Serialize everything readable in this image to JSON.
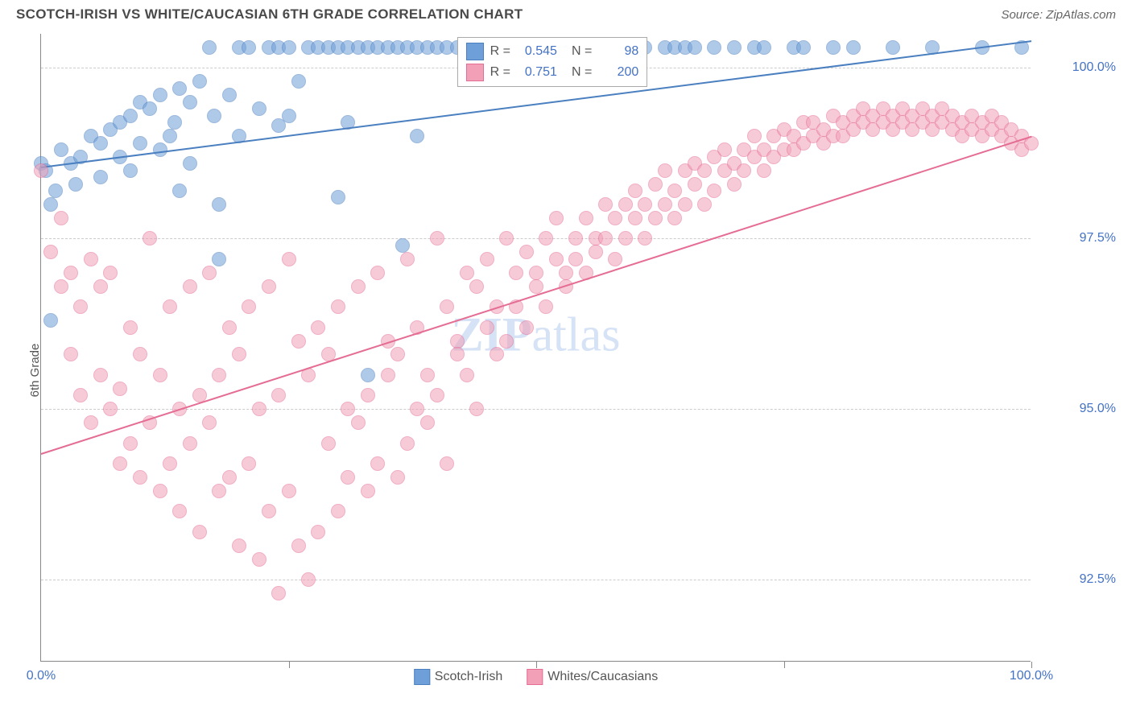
{
  "header": {
    "title": "SCOTCH-IRISH VS WHITE/CAUCASIAN 6TH GRADE CORRELATION CHART",
    "source": "Source: ZipAtlas.com"
  },
  "ylabel": "6th Grade",
  "watermark_bold": "ZIP",
  "watermark_rest": "atlas",
  "chart": {
    "type": "scatter",
    "xlim": [
      0,
      100
    ],
    "ylim": [
      91.3,
      100.5
    ],
    "yticks": [
      92.5,
      95.0,
      97.5,
      100.0
    ],
    "ytick_labels": [
      "92.5%",
      "95.0%",
      "97.5%",
      "100.0%"
    ],
    "xticks_minor": [
      0,
      25,
      50,
      75,
      100
    ],
    "xtick_left": "0.0%",
    "xtick_right": "100.0%",
    "grid_color": "#cccccc",
    "background_color": "#ffffff",
    "tick_color": "#4472c4",
    "point_radius": 9,
    "point_opacity": 0.55,
    "series": [
      {
        "name": "Scotch-Irish",
        "color": "#6f9fd8",
        "stroke": "#4a7fc0",
        "R": "0.545",
        "N": "98",
        "trend": {
          "x0": 0,
          "y0": 98.55,
          "x1": 100,
          "y1": 100.4
        },
        "points": [
          [
            0,
            98.6
          ],
          [
            0.5,
            98.5
          ],
          [
            1,
            98.0
          ],
          [
            1,
            96.3
          ],
          [
            1.5,
            98.2
          ],
          [
            2,
            98.8
          ],
          [
            3,
            98.6
          ],
          [
            3.5,
            98.3
          ],
          [
            4,
            98.7
          ],
          [
            5,
            99.0
          ],
          [
            6,
            98.9
          ],
          [
            6,
            98.4
          ],
          [
            7,
            99.1
          ],
          [
            8,
            99.2
          ],
          [
            8,
            98.7
          ],
          [
            9,
            99.3
          ],
          [
            9,
            98.5
          ],
          [
            10,
            98.9
          ],
          [
            10,
            99.5
          ],
          [
            11,
            99.4
          ],
          [
            12,
            98.8
          ],
          [
            12,
            99.6
          ],
          [
            13,
            99.0
          ],
          [
            13.5,
            99.2
          ],
          [
            14,
            99.7
          ],
          [
            14,
            98.2
          ],
          [
            15,
            99.5
          ],
          [
            15,
            98.6
          ],
          [
            16,
            99.8
          ],
          [
            17,
            100.3
          ],
          [
            17.5,
            99.3
          ],
          [
            18,
            98.0
          ],
          [
            18,
            97.2
          ],
          [
            19,
            99.6
          ],
          [
            20,
            100.3
          ],
          [
            20,
            99.0
          ],
          [
            21,
            100.3
          ],
          [
            22,
            99.4
          ],
          [
            23,
            100.3
          ],
          [
            24,
            100.3
          ],
          [
            24,
            99.15
          ],
          [
            25,
            100.3
          ],
          [
            25,
            99.3
          ],
          [
            26,
            99.8
          ],
          [
            27,
            100.3
          ],
          [
            28,
            100.3
          ],
          [
            29,
            100.3
          ],
          [
            30,
            100.3
          ],
          [
            30,
            98.1
          ],
          [
            31,
            100.3
          ],
          [
            31,
            99.2
          ],
          [
            32,
            100.3
          ],
          [
            33,
            100.3
          ],
          [
            33,
            95.5
          ],
          [
            34,
            100.3
          ],
          [
            35,
            100.3
          ],
          [
            36,
            100.3
          ],
          [
            36.5,
            97.4
          ],
          [
            37,
            100.3
          ],
          [
            38,
            100.3
          ],
          [
            38,
            99.0
          ],
          [
            39,
            100.3
          ],
          [
            40,
            100.3
          ],
          [
            41,
            100.3
          ],
          [
            42,
            100.3
          ],
          [
            43,
            100.3
          ],
          [
            44,
            100.3
          ],
          [
            45,
            100.3
          ],
          [
            46,
            100.3
          ],
          [
            47,
            100.3
          ],
          [
            48,
            100.3
          ],
          [
            49,
            100.3
          ],
          [
            50,
            100.3
          ],
          [
            52,
            100.3
          ],
          [
            54,
            100.3
          ],
          [
            56,
            100.3
          ],
          [
            58,
            100.3
          ],
          [
            60,
            100.3
          ],
          [
            61,
            100.3
          ],
          [
            63,
            100.3
          ],
          [
            64,
            100.3
          ],
          [
            65,
            100.3
          ],
          [
            66,
            100.3
          ],
          [
            68,
            100.3
          ],
          [
            70,
            100.3
          ],
          [
            72,
            100.3
          ],
          [
            73,
            100.3
          ],
          [
            76,
            100.3
          ],
          [
            77,
            100.3
          ],
          [
            80,
            100.3
          ],
          [
            82,
            100.3
          ],
          [
            86,
            100.3
          ],
          [
            90,
            100.3
          ],
          [
            95,
            100.3
          ],
          [
            99,
            100.3
          ]
        ]
      },
      {
        "name": "Whites/Caucasians",
        "color": "#f2a0b8",
        "stroke": "#e56d94",
        "R": "0.751",
        "N": "200",
        "trend": {
          "x0": 0,
          "y0": 94.35,
          "x1": 100,
          "y1": 99.0
        },
        "points": [
          [
            0,
            98.5
          ],
          [
            1,
            97.3
          ],
          [
            2,
            97.8
          ],
          [
            2,
            96.8
          ],
          [
            3,
            97.0
          ],
          [
            3,
            95.8
          ],
          [
            4,
            96.5
          ],
          [
            4,
            95.2
          ],
          [
            5,
            97.2
          ],
          [
            5,
            94.8
          ],
          [
            6,
            96.8
          ],
          [
            6,
            95.5
          ],
          [
            7,
            95.0
          ],
          [
            7,
            97.0
          ],
          [
            8,
            95.3
          ],
          [
            8,
            94.2
          ],
          [
            9,
            96.2
          ],
          [
            9,
            94.5
          ],
          [
            10,
            95.8
          ],
          [
            10,
            94.0
          ],
          [
            11,
            97.5
          ],
          [
            11,
            94.8
          ],
          [
            12,
            95.5
          ],
          [
            12,
            93.8
          ],
          [
            13,
            96.5
          ],
          [
            13,
            94.2
          ],
          [
            14,
            95.0
          ],
          [
            14,
            93.5
          ],
          [
            15,
            96.8
          ],
          [
            15,
            94.5
          ],
          [
            16,
            95.2
          ],
          [
            16,
            93.2
          ],
          [
            17,
            97.0
          ],
          [
            17,
            94.8
          ],
          [
            18,
            95.5
          ],
          [
            18,
            93.8
          ],
          [
            19,
            96.2
          ],
          [
            19,
            94.0
          ],
          [
            20,
            95.8
          ],
          [
            20,
            93.0
          ],
          [
            21,
            96.5
          ],
          [
            21,
            94.2
          ],
          [
            22,
            95.0
          ],
          [
            22,
            92.8
          ],
          [
            23,
            96.8
          ],
          [
            23,
            93.5
          ],
          [
            24,
            95.2
          ],
          [
            24,
            92.3
          ],
          [
            25,
            97.2
          ],
          [
            25,
            93.8
          ],
          [
            26,
            96.0
          ],
          [
            26,
            93.0
          ],
          [
            27,
            95.5
          ],
          [
            27,
            92.5
          ],
          [
            28,
            96.2
          ],
          [
            28,
            93.2
          ],
          [
            29,
            95.8
          ],
          [
            29,
            94.5
          ],
          [
            30,
            96.5
          ],
          [
            30,
            93.5
          ],
          [
            31,
            95.0
          ],
          [
            31,
            94.0
          ],
          [
            32,
            96.8
          ],
          [
            32,
            94.8
          ],
          [
            33,
            95.2
          ],
          [
            33,
            93.8
          ],
          [
            34,
            97.0
          ],
          [
            34,
            94.2
          ],
          [
            35,
            96.0
          ],
          [
            35,
            95.5
          ],
          [
            36,
            95.8
          ],
          [
            36,
            94.0
          ],
          [
            37,
            97.2
          ],
          [
            37,
            94.5
          ],
          [
            38,
            96.2
          ],
          [
            38,
            95.0
          ],
          [
            39,
            95.5
          ],
          [
            39,
            94.8
          ],
          [
            40,
            97.5
          ],
          [
            40,
            95.2
          ],
          [
            41,
            96.5
          ],
          [
            41,
            94.2
          ],
          [
            42,
            96.0
          ],
          [
            42,
            95.8
          ],
          [
            43,
            97.0
          ],
          [
            43,
            95.5
          ],
          [
            44,
            96.8
          ],
          [
            44,
            95.0
          ],
          [
            45,
            97.2
          ],
          [
            45,
            96.2
          ],
          [
            46,
            96.5
          ],
          [
            46,
            95.8
          ],
          [
            47,
            97.5
          ],
          [
            47,
            96.0
          ],
          [
            48,
            97.0
          ],
          [
            48,
            96.5
          ],
          [
            49,
            97.3
          ],
          [
            49,
            96.2
          ],
          [
            50,
            97.0
          ],
          [
            50,
            96.8
          ],
          [
            51,
            97.5
          ],
          [
            51,
            96.5
          ],
          [
            52,
            97.2
          ],
          [
            52,
            97.8
          ],
          [
            53,
            97.0
          ],
          [
            53,
            96.8
          ],
          [
            54,
            97.5
          ],
          [
            54,
            97.2
          ],
          [
            55,
            97.8
          ],
          [
            55,
            97.0
          ],
          [
            56,
            97.5
          ],
          [
            56,
            97.3
          ],
          [
            57,
            98.0
          ],
          [
            57,
            97.5
          ],
          [
            58,
            97.8
          ],
          [
            58,
            97.2
          ],
          [
            59,
            98.0
          ],
          [
            59,
            97.5
          ],
          [
            60,
            97.8
          ],
          [
            60,
            98.2
          ],
          [
            61,
            98.0
          ],
          [
            61,
            97.5
          ],
          [
            62,
            98.3
          ],
          [
            62,
            97.8
          ],
          [
            63,
            98.0
          ],
          [
            63,
            98.5
          ],
          [
            64,
            98.2
          ],
          [
            64,
            97.8
          ],
          [
            65,
            98.5
          ],
          [
            65,
            98.0
          ],
          [
            66,
            98.3
          ],
          [
            66,
            98.6
          ],
          [
            67,
            98.5
          ],
          [
            67,
            98.0
          ],
          [
            68,
            98.7
          ],
          [
            68,
            98.2
          ],
          [
            69,
            98.5
          ],
          [
            69,
            98.8
          ],
          [
            70,
            98.6
          ],
          [
            70,
            98.3
          ],
          [
            71,
            98.8
          ],
          [
            71,
            98.5
          ],
          [
            72,
            98.7
          ],
          [
            72,
            99.0
          ],
          [
            73,
            98.8
          ],
          [
            73,
            98.5
          ],
          [
            74,
            99.0
          ],
          [
            74,
            98.7
          ],
          [
            75,
            98.8
          ],
          [
            75,
            99.1
          ],
          [
            76,
            99.0
          ],
          [
            76,
            98.8
          ],
          [
            77,
            99.2
          ],
          [
            77,
            98.9
          ],
          [
            78,
            99.0
          ],
          [
            78,
            99.2
          ],
          [
            79,
            99.1
          ],
          [
            79,
            98.9
          ],
          [
            80,
            99.0
          ],
          [
            80,
            99.3
          ],
          [
            81,
            99.2
          ],
          [
            81,
            99.0
          ],
          [
            82,
            99.3
          ],
          [
            82,
            99.1
          ],
          [
            83,
            99.2
          ],
          [
            83,
            99.4
          ],
          [
            84,
            99.3
          ],
          [
            84,
            99.1
          ],
          [
            85,
            99.4
          ],
          [
            85,
            99.2
          ],
          [
            86,
            99.3
          ],
          [
            86,
            99.1
          ],
          [
            87,
            99.2
          ],
          [
            87,
            99.4
          ],
          [
            88,
            99.3
          ],
          [
            88,
            99.1
          ],
          [
            89,
            99.2
          ],
          [
            89,
            99.4
          ],
          [
            90,
            99.3
          ],
          [
            90,
            99.1
          ],
          [
            91,
            99.2
          ],
          [
            91,
            99.4
          ],
          [
            92,
            99.3
          ],
          [
            92,
            99.1
          ],
          [
            93,
            99.2
          ],
          [
            93,
            99.0
          ],
          [
            94,
            99.1
          ],
          [
            94,
            99.3
          ],
          [
            95,
            99.2
          ],
          [
            95,
            99.0
          ],
          [
            96,
            99.1
          ],
          [
            96,
            99.3
          ],
          [
            97,
            99.2
          ],
          [
            97,
            99.0
          ],
          [
            98,
            99.1
          ],
          [
            98,
            98.9
          ],
          [
            99,
            99.0
          ],
          [
            99,
            98.8
          ],
          [
            100,
            98.9
          ]
        ]
      }
    ]
  },
  "legend_stats": {
    "label_R": "R =",
    "label_N": "N ="
  },
  "bottom_legend": {
    "items": [
      "Scotch-Irish",
      "Whites/Caucasians"
    ]
  }
}
